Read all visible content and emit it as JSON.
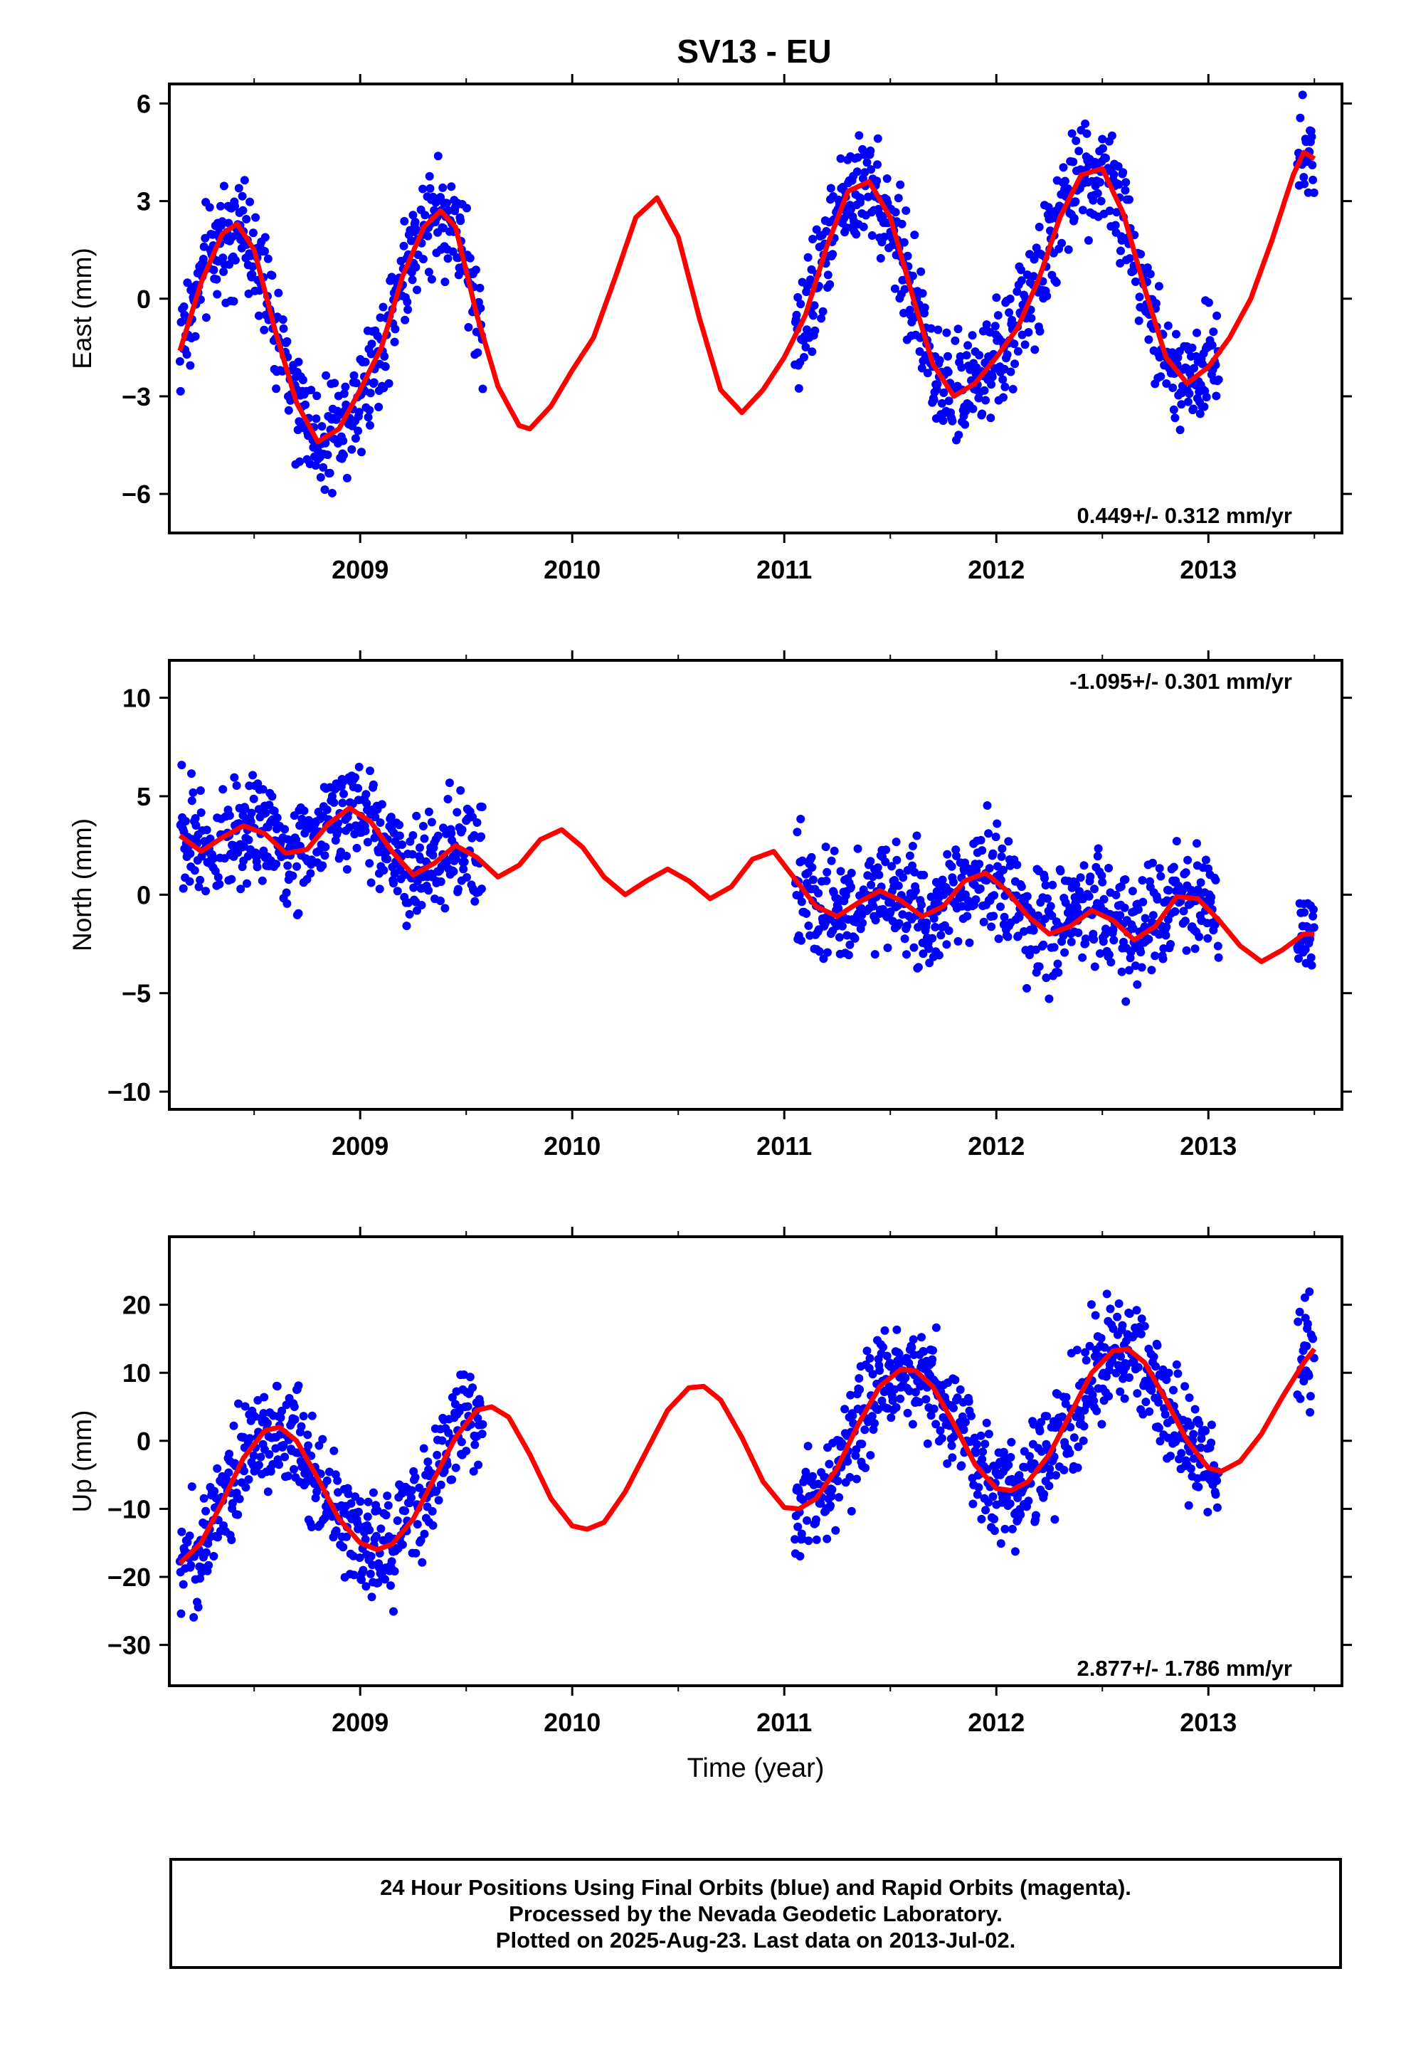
{
  "title": "SV13 - EU",
  "footer": {
    "line1": "24 Hour Positions Using Final Orbits (blue) and Rapid Orbits (magenta).",
    "line2": "Processed by the Nevada Geodetic Laboratory.",
    "line3": "Plotted on 2025-Aug-23. Last data on 2013-Jul-02."
  },
  "colors": {
    "points": "#0000ff",
    "model": "#ff0000",
    "axes": "#000000"
  },
  "chart_data": [
    {
      "type": "scatter",
      "ylabel": "East (mm)",
      "xlabel": "",
      "xlim": [
        2008.1,
        2013.63
      ],
      "ylim": [
        -7.2,
        6.6
      ],
      "yticks": [
        -6,
        -3,
        0,
        3,
        6
      ],
      "xticks": [
        2009,
        2010,
        2011,
        2012,
        2013
      ],
      "rate_label": "0.449+/- 0.312 mm/yr",
      "rate_position": "bottom-right",
      "data_spans": [
        [
          2008.15,
          2009.58
        ],
        [
          2011.05,
          2013.05
        ],
        [
          2013.42,
          2013.5
        ]
      ],
      "model": {
        "x": [
          2008.15,
          2008.25,
          2008.35,
          2008.42,
          2008.5,
          2008.6,
          2008.7,
          2008.8,
          2008.9,
          2009.0,
          2009.1,
          2009.2,
          2009.3,
          2009.38,
          2009.45,
          2009.55,
          2009.65,
          2009.75,
          2009.8,
          2009.9,
          2010.0,
          2010.1,
          2010.2,
          2010.3,
          2010.4,
          2010.5,
          2010.6,
          2010.7,
          2010.8,
          2010.9,
          2011.0,
          2011.1,
          2011.2,
          2011.3,
          2011.4,
          2011.5,
          2011.6,
          2011.7,
          2011.8,
          2011.9,
          2012.0,
          2012.1,
          2012.2,
          2012.3,
          2012.4,
          2012.5,
          2012.6,
          2012.7,
          2012.8,
          2012.9,
          2013.0,
          2013.1,
          2013.2,
          2013.3,
          2013.4,
          2013.45,
          2013.5
        ],
        "y": [
          -1.6,
          0.5,
          2.0,
          2.3,
          1.5,
          -1.0,
          -3.2,
          -4.4,
          -4.0,
          -2.8,
          -1.5,
          0.7,
          2.2,
          2.7,
          2.2,
          -0.5,
          -2.7,
          -3.9,
          -4.0,
          -3.3,
          -2.2,
          -1.2,
          0.6,
          2.5,
          3.1,
          1.9,
          -0.6,
          -2.8,
          -3.5,
          -2.8,
          -1.8,
          -0.5,
          1.6,
          3.3,
          3.6,
          2.5,
          0.2,
          -2.0,
          -3.0,
          -2.6,
          -1.8,
          -0.9,
          0.6,
          2.5,
          3.8,
          4.0,
          2.6,
          0.3,
          -1.8,
          -2.6,
          -2.1,
          -1.2,
          0.0,
          1.8,
          3.8,
          4.5,
          4.3
        ]
      }
    },
    {
      "type": "scatter",
      "ylabel": "North (mm)",
      "xlabel": "",
      "xlim": [
        2008.1,
        2013.63
      ],
      "ylim": [
        -10.9,
        11.9
      ],
      "yticks": [
        -10,
        -5,
        0,
        5,
        10
      ],
      "xticks": [
        2009,
        2010,
        2011,
        2012,
        2013
      ],
      "rate_label": "-1.095+/- 0.301 mm/yr",
      "rate_position": "top-right",
      "data_spans": [
        [
          2008.15,
          2009.58
        ],
        [
          2011.05,
          2013.05
        ],
        [
          2013.42,
          2013.5
        ]
      ],
      "model": {
        "x": [
          2008.15,
          2008.25,
          2008.35,
          2008.45,
          2008.55,
          2008.65,
          2008.75,
          2008.85,
          2008.95,
          2009.05,
          2009.15,
          2009.25,
          2009.35,
          2009.45,
          2009.55,
          2009.65,
          2009.75,
          2009.85,
          2009.95,
          2010.05,
          2010.15,
          2010.25,
          2010.35,
          2010.45,
          2010.55,
          2010.65,
          2010.75,
          2010.85,
          2010.95,
          2011.05,
          2011.15,
          2011.25,
          2011.35,
          2011.45,
          2011.55,
          2011.65,
          2011.75,
          2011.85,
          2011.95,
          2012.05,
          2012.15,
          2012.25,
          2012.35,
          2012.45,
          2012.55,
          2012.65,
          2012.75,
          2012.85,
          2012.95,
          2013.05,
          2013.15,
          2013.25,
          2013.35,
          2013.45,
          2013.5
        ],
        "y": [
          3.0,
          2.2,
          2.9,
          3.5,
          3.1,
          2.1,
          2.3,
          3.6,
          4.4,
          3.7,
          2.2,
          1.0,
          1.6,
          2.5,
          1.9,
          0.9,
          1.5,
          2.8,
          3.3,
          2.4,
          0.9,
          0.0,
          0.7,
          1.3,
          0.7,
          -0.2,
          0.4,
          1.8,
          2.2,
          0.8,
          -0.6,
          -1.1,
          -0.4,
          0.2,
          -0.3,
          -1.1,
          -0.6,
          0.7,
          1.1,
          0.2,
          -1.1,
          -2.0,
          -1.6,
          -0.8,
          -1.3,
          -2.3,
          -1.6,
          -0.1,
          -0.2,
          -1.3,
          -2.6,
          -3.4,
          -2.8,
          -2.0,
          -2.0
        ]
      }
    },
    {
      "type": "scatter",
      "ylabel": "Up (mm)",
      "xlabel": "Time (year)",
      "xlim": [
        2008.1,
        2013.63
      ],
      "ylim": [
        -36,
        30
      ],
      "yticks": [
        -30,
        -20,
        -10,
        0,
        10,
        20
      ],
      "xticks": [
        2009,
        2010,
        2011,
        2012,
        2013
      ],
      "rate_label": "2.877+/- 1.786 mm/yr",
      "rate_position": "bottom-right",
      "data_spans": [
        [
          2008.15,
          2009.58
        ],
        [
          2011.05,
          2013.05
        ],
        [
          2013.42,
          2013.5
        ]
      ],
      "model": {
        "x": [
          2008.15,
          2008.25,
          2008.35,
          2008.45,
          2008.55,
          2008.62,
          2008.7,
          2008.8,
          2008.9,
          2009.0,
          2009.08,
          2009.15,
          2009.25,
          2009.35,
          2009.45,
          2009.55,
          2009.62,
          2009.7,
          2009.8,
          2009.9,
          2010.0,
          2010.07,
          2010.15,
          2010.25,
          2010.35,
          2010.45,
          2010.55,
          2010.62,
          2010.7,
          2010.8,
          2010.9,
          2011.0,
          2011.07,
          2011.15,
          2011.25,
          2011.35,
          2011.45,
          2011.55,
          2011.62,
          2011.7,
          2011.8,
          2011.9,
          2012.0,
          2012.07,
          2012.15,
          2012.25,
          2012.35,
          2012.45,
          2012.55,
          2012.62,
          2012.7,
          2012.8,
          2012.9,
          2013.0,
          2013.06,
          2013.15,
          2013.25,
          2013.35,
          2013.45,
          2013.5
        ],
        "y": [
          -18.0,
          -15.0,
          -9.0,
          -2.5,
          1.5,
          2.0,
          0.0,
          -5.5,
          -11.5,
          -15.0,
          -16.0,
          -15.2,
          -11.5,
          -5.5,
          0.5,
          4.5,
          5.0,
          3.5,
          -2.0,
          -8.5,
          -12.5,
          -13.0,
          -12.0,
          -7.5,
          -1.5,
          4.5,
          7.8,
          8.0,
          6.0,
          0.5,
          -6.0,
          -9.8,
          -10.0,
          -8.5,
          -4.0,
          2.5,
          8.0,
          10.5,
          10.3,
          8.0,
          2.5,
          -3.5,
          -7.0,
          -7.3,
          -6.0,
          -2.0,
          4.0,
          10.0,
          13.2,
          13.5,
          11.5,
          6.0,
          0.0,
          -4.0,
          -4.5,
          -3.0,
          1.0,
          6.5,
          11.5,
          13.5
        ]
      }
    }
  ]
}
